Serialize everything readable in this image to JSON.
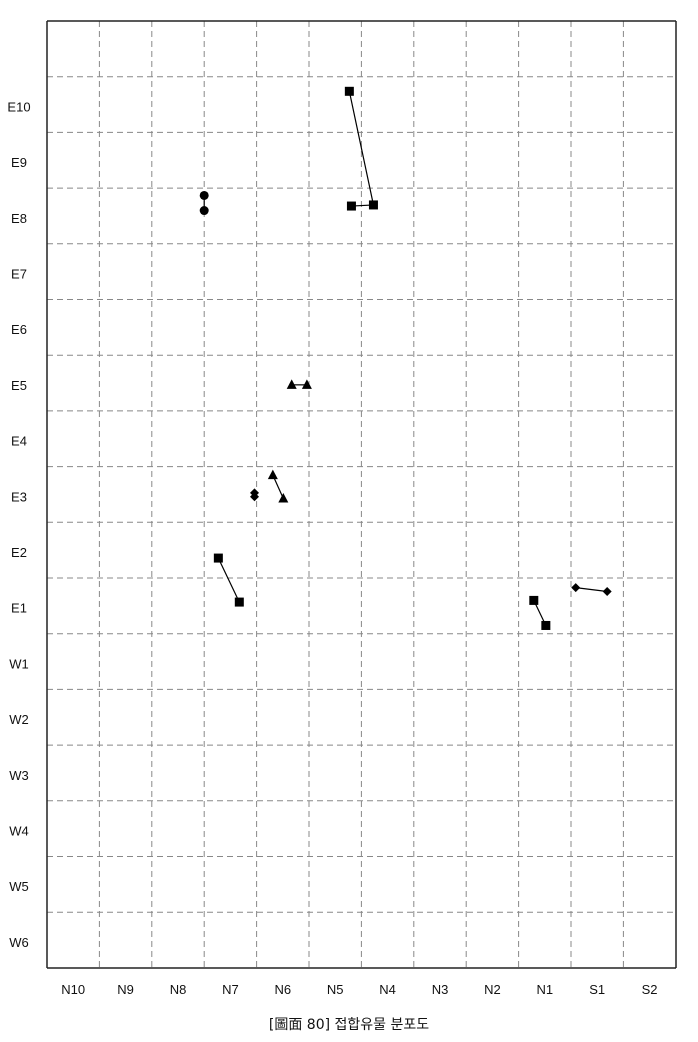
{
  "caption": "[圖面 80] 접합유물 분포도",
  "chart_data": {
    "type": "scatter",
    "x_tick_labels": [
      "N10",
      "N9",
      "N8",
      "N7",
      "N6",
      "N5",
      "N4",
      "N3",
      "N2",
      "N1",
      "S1",
      "S2"
    ],
    "y_tick_labels": [
      "E10",
      "E9",
      "E8",
      "E7",
      "E6",
      "E5",
      "E4",
      "E3",
      "E2",
      "E1",
      "W1",
      "W2",
      "W3",
      "W4",
      "W5",
      "W6"
    ],
    "grid": true,
    "groups": [
      {
        "marker": "circle",
        "points": [
          [
            8.0,
            7.9
          ],
          [
            8.0,
            7.63
          ]
        ]
      },
      {
        "marker": "square",
        "points": [
          [
            5.23,
            9.77
          ],
          [
            4.77,
            7.73
          ],
          [
            5.19,
            7.71
          ]
        ]
      },
      {
        "marker": "triangle",
        "points": [
          [
            6.33,
            4.5
          ],
          [
            6.04,
            4.5
          ]
        ]
      },
      {
        "marker": "triangle",
        "points": [
          [
            6.69,
            2.88
          ],
          [
            6.49,
            2.46
          ]
        ]
      },
      {
        "marker": "diamond",
        "points": [
          [
            7.04,
            2.56
          ],
          [
            7.04,
            2.49
          ]
        ]
      },
      {
        "marker": "square",
        "points": [
          [
            7.73,
            1.39
          ],
          [
            7.33,
            0.6
          ]
        ]
      },
      {
        "marker": "square",
        "points": [
          [
            1.71,
            0.63
          ],
          [
            1.48,
            0.18
          ]
        ]
      },
      {
        "marker": "diamond",
        "points": [
          [
            0.31,
            0.79
          ],
          [
            0.91,
            0.86
          ]
        ]
      }
    ]
  }
}
